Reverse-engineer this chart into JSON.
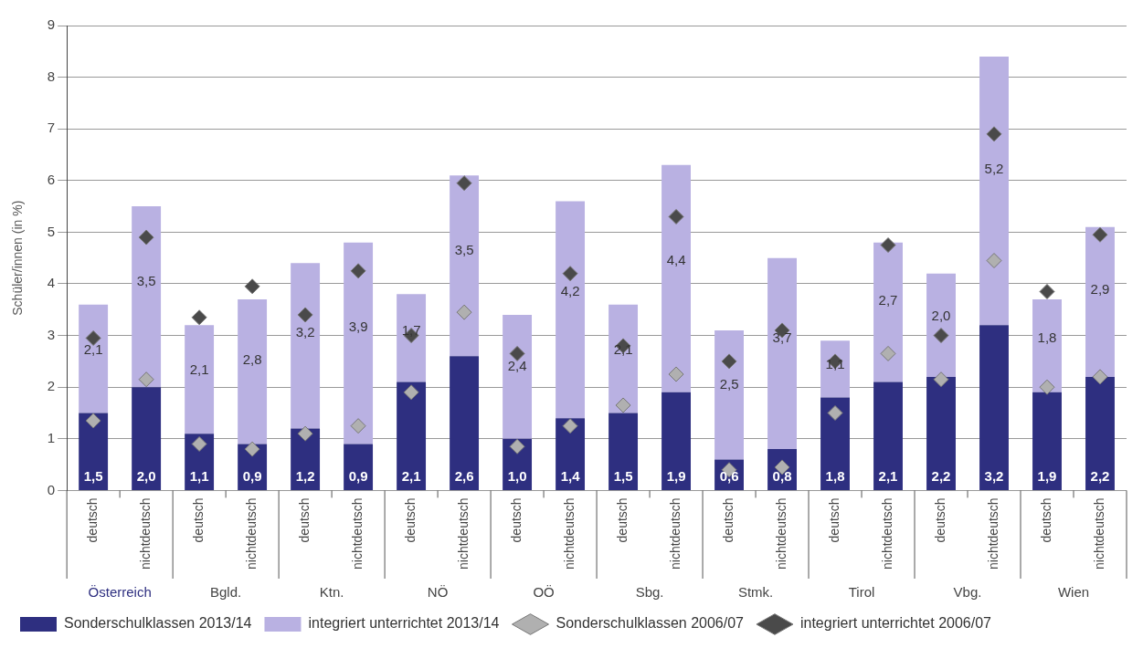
{
  "chart_data": {
    "type": "bar",
    "stacked": true,
    "ylabel": "Schüler/innen (in %)",
    "categories": [
      "deutsch",
      "nichtdeutsch",
      "deutsch",
      "nichtdeutsch",
      "deutsch",
      "nichtdeutsch",
      "deutsch",
      "nichtdeutsch",
      "deutsch",
      "nichtdeutsch",
      "deutsch",
      "nichtdeutsch",
      "deutsch",
      "nichtdeutsch",
      "deutsch",
      "nichtdeutsch",
      "deutsch",
      "nichtdeutsch",
      "deutsch",
      "nichtdeutsch"
    ],
    "annotations": [
      "Österreich",
      "Bgld.",
      "Ktn.",
      "NÖ",
      "OÖ",
      "Sbg.",
      "Stmk.",
      "Tirol",
      "Vbg.",
      "Wien"
    ],
    "series": [
      {
        "name": "Sonderschulklassen 2013/14",
        "color": "#2e2f80",
        "values": [
          1.5,
          2.0,
          1.1,
          0.9,
          1.2,
          0.9,
          2.1,
          2.6,
          1.0,
          1.4,
          1.5,
          1.9,
          0.6,
          0.8,
          1.8,
          2.1,
          2.2,
          3.2,
          1.9,
          2.2
        ],
        "value_labels": [
          "1,5",
          "2,0",
          "1,1",
          "0,9",
          "1,2",
          "0,9",
          "2,1",
          "2,6",
          "1,0",
          "1,4",
          "1,5",
          "1,9",
          "0,6",
          "0,8",
          "1,8",
          "2,1",
          "2,2",
          "3,2",
          "1,9",
          "2,2"
        ]
      },
      {
        "name": "integriert unterrichtet 2013/14",
        "color": "#b9b1e2",
        "values": [
          2.1,
          3.5,
          2.1,
          2.8,
          3.2,
          3.9,
          1.7,
          3.5,
          2.4,
          4.2,
          2.1,
          4.4,
          2.5,
          3.7,
          1.1,
          2.7,
          2.0,
          5.2,
          1.8,
          2.9
        ],
        "value_labels": [
          "2,1",
          "3,5",
          "2,1",
          "2,8",
          "3,2",
          "3,9",
          "1,7",
          "3,5",
          "2,4",
          "4,2",
          "2,1",
          "4,4",
          "2,5",
          "3,7",
          "1,1",
          "2,7",
          "2,0",
          "5,2",
          "1,8",
          "2,9"
        ]
      },
      {
        "name": "Sonderschulklassen 2006/07",
        "type": "scatter",
        "marker": "diamond",
        "color": "#b0b0b0",
        "values": [
          1.35,
          2.15,
          0.9,
          0.8,
          1.1,
          1.25,
          1.9,
          3.45,
          0.85,
          1.25,
          1.65,
          2.25,
          0.4,
          0.45,
          1.5,
          2.65,
          2.15,
          4.45,
          2.0,
          2.2
        ]
      },
      {
        "name": "integriert unterrichtet 2006/07",
        "type": "scatter",
        "marker": "diamond",
        "color": "#4a4a4a",
        "values": [
          2.95,
          4.9,
          3.35,
          3.95,
          3.4,
          4.25,
          3.0,
          5.95,
          2.65,
          4.2,
          2.8,
          5.3,
          2.5,
          3.1,
          2.5,
          4.75,
          3.0,
          6.9,
          3.85,
          4.95
        ]
      }
    ],
    "ylim": [
      0,
      9
    ],
    "yticks": [
      0,
      1,
      2,
      3,
      4,
      5,
      6,
      7,
      8,
      9
    ],
    "grid": "y",
    "legend": "bottom"
  }
}
